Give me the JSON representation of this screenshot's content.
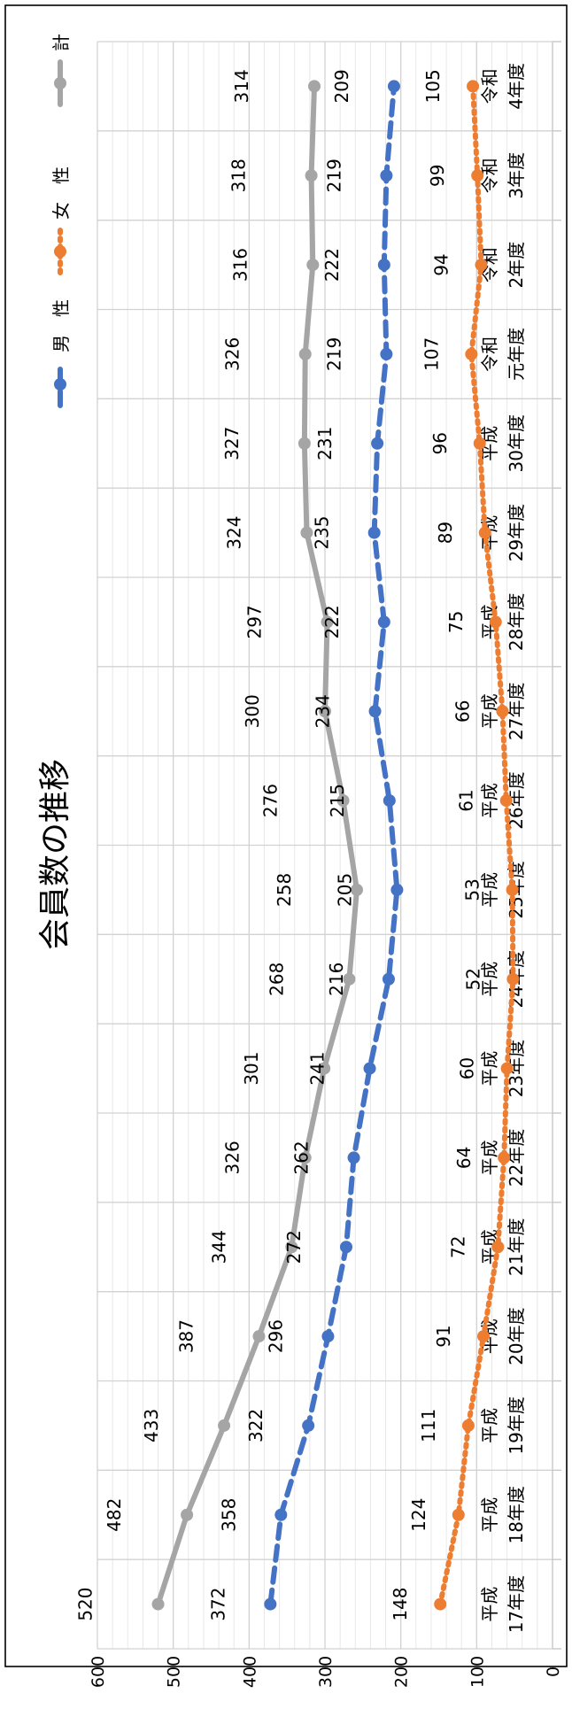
{
  "chart_data": {
    "type": "line",
    "title": "会員数の推移",
    "categories": [
      [
        "平成",
        "17年度"
      ],
      [
        "平成",
        "18年度"
      ],
      [
        "平成",
        "19年度"
      ],
      [
        "平成",
        "20年度"
      ],
      [
        "平成",
        "21年度"
      ],
      [
        "平成",
        "22年度"
      ],
      [
        "平成",
        "23年度"
      ],
      [
        "平成",
        "24年度"
      ],
      [
        "平成",
        "25年度"
      ],
      [
        "平成",
        "26年度"
      ],
      [
        "平成",
        "27年度"
      ],
      [
        "平成",
        "28年度"
      ],
      [
        "平成",
        "29年度"
      ],
      [
        "平成",
        "30年度"
      ],
      [
        "令和",
        "元年度"
      ],
      [
        "令和",
        "2年度"
      ],
      [
        "令和",
        "3年度"
      ],
      [
        "令和",
        "4年度"
      ]
    ],
    "series": [
      {
        "name": "男　性",
        "color": "#4472C4",
        "dash": "dashed",
        "marker": "circle",
        "values": [
          372,
          358,
          322,
          296,
          272,
          262,
          241,
          216,
          205,
          215,
          234,
          222,
          235,
          231,
          219,
          222,
          219,
          209
        ]
      },
      {
        "name": "女　性",
        "color": "#ED7D31",
        "dash": "dotted",
        "marker": "circle",
        "values": [
          148,
          124,
          111,
          91,
          72,
          64,
          60,
          52,
          53,
          61,
          66,
          75,
          89,
          96,
          107,
          94,
          99,
          105
        ]
      },
      {
        "name": "計",
        "color": "#A5A5A5",
        "dash": "solid",
        "marker": "circle",
        "values": [
          520,
          482,
          433,
          387,
          344,
          326,
          301,
          268,
          258,
          276,
          300,
          297,
          324,
          327,
          326,
          316,
          318,
          314
        ]
      }
    ],
    "ylim": [
      0,
      600
    ],
    "yticks": [
      0,
      100,
      200,
      300,
      400,
      500,
      600
    ],
    "orientation": "rotated 90° clockwise (value axis along the bottom, categories run bottom-to-top)",
    "grid": true,
    "legend": "top",
    "data_labels": true
  }
}
